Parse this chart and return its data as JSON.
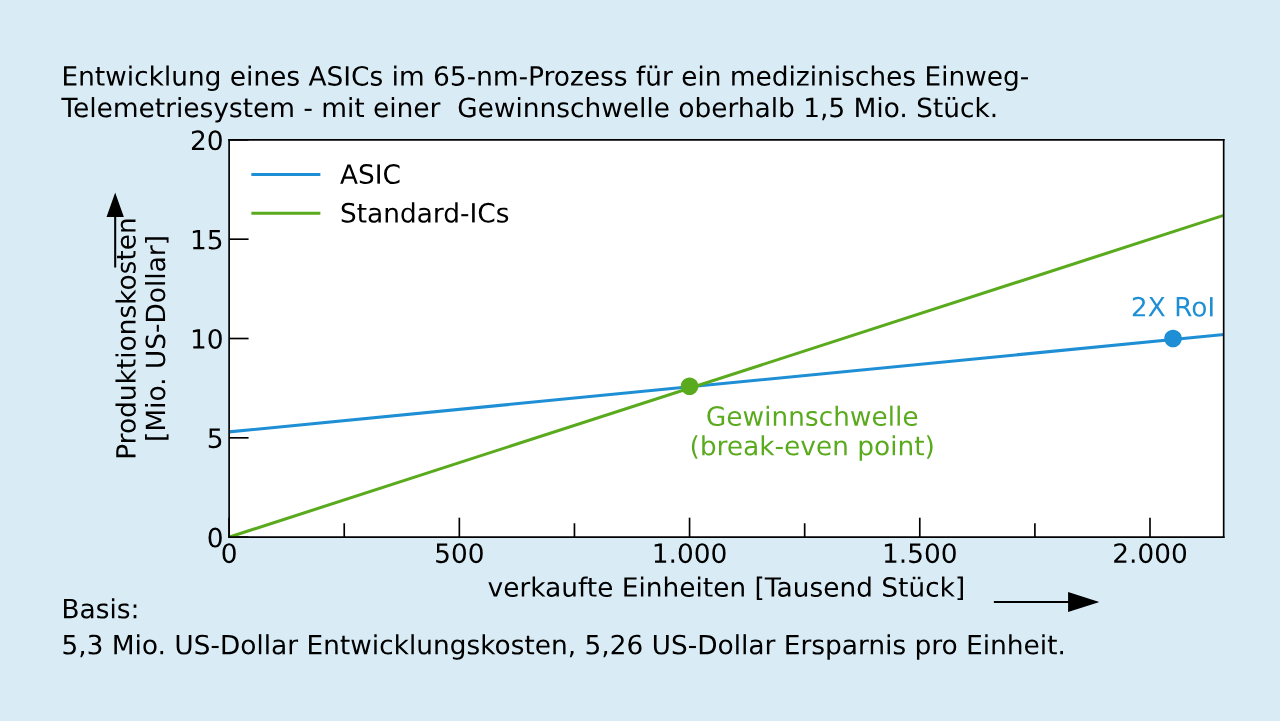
{
  "chart_data": {
    "type": "line",
    "title": "Entwicklung eines ASICs im 65-nm-Prozess für ein medizinisches Einweg-\nTelemetriesystem - mit einer  Gewinnschwelle oberhalb 1,5 Mio. Stück.",
    "xlabel": "verkaufte Einheiten [Tausend Stück]",
    "ylabel": "Produktionskosten\n[Mio. US-Dollar]",
    "series": [
      {
        "name": "ASIC",
        "color": "#1e8fd5",
        "x": [
          0,
          2160
        ],
        "values": [
          5.3,
          10.2
        ]
      },
      {
        "name": "Standard-ICs",
        "color": "#5aaa1e",
        "x": [
          0,
          2160
        ],
        "values": [
          0,
          16.2
        ]
      },
      {
        "type": "scatter",
        "marker": "circle",
        "color": "#5aaa1e",
        "x": [
          1000
        ],
        "values": [
          7.6
        ]
      },
      {
        "type": "scatter",
        "marker": "circle",
        "color": "#1e8fd5",
        "x": [
          2050
        ],
        "values": [
          10.0
        ]
      }
    ],
    "annotations": [
      {
        "text": "Gewinnschwelle\n(break-even point)",
        "x": 1000,
        "y": 7.6
      },
      {
        "text": "2X RoI",
        "x": 2050,
        "y": 10.0
      },
      "Basis:",
      "5,3 Mio. US-Dollar Entwicklungskosten, 5,26 US-Dollar Ersparnis pro Einheit."
    ],
    "xlim": [
      0,
      2160
    ],
    "xticks": [
      0,
      {
        "value": 250,
        "label": null
      },
      500,
      {
        "value": 750,
        "label": null
      },
      {
        "value": 1000,
        "label": "1.000"
      },
      {
        "value": 1250,
        "label": null
      },
      {
        "value": 1500,
        "label": "1.500"
      },
      {
        "value": 1750,
        "label": null
      },
      {
        "value": 2000,
        "label": "2.000"
      }
    ],
    "ylim": [
      0,
      20
    ],
    "yticks": [
      0,
      5,
      10,
      15,
      20
    ],
    "legend": "top left",
    "grid": false,
    "marker": "none",
    "line_style": "solid"
  }
}
